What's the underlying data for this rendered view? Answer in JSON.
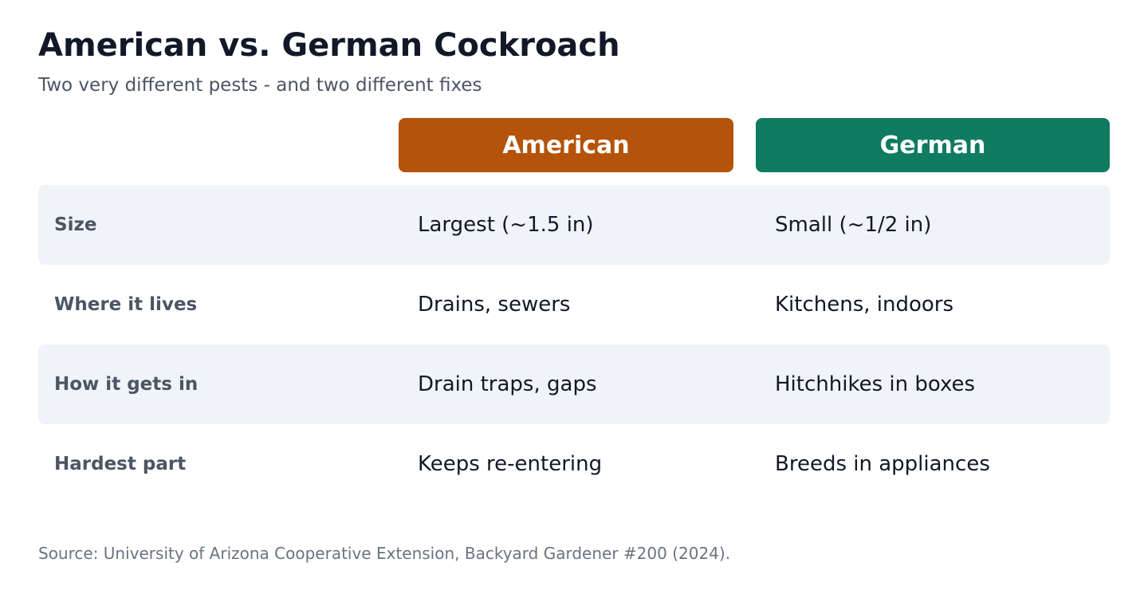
{
  "header": {
    "title": "American vs. German Cockroach",
    "subtitle": "Two very different pests - and two different fixes"
  },
  "columns": {
    "american": {
      "label": "American",
      "color": "#b45309"
    },
    "german": {
      "label": "German",
      "color": "#0f7b61"
    }
  },
  "rows": [
    {
      "label": "Size",
      "american": "Largest (~1.5 in)",
      "german": "Small (~1/2 in)"
    },
    {
      "label": "Where it lives",
      "american": "Drains, sewers",
      "german": "Kitchens, indoors"
    },
    {
      "label": "How it gets in",
      "american": "Drain traps, gaps",
      "german": "Hitchhikes in boxes"
    },
    {
      "label": "Hardest part",
      "american": "Keeps re-entering",
      "german": "Breeds in appliances"
    }
  ],
  "footer": {
    "source": "Source: University of Arizona Cooperative Extension, Backyard Gardener #200 (2024)."
  }
}
